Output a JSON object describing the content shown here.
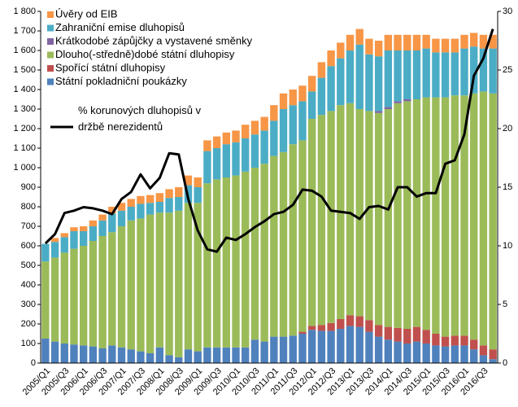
{
  "chart_data": {
    "type": "bar",
    "stacked": true,
    "categories": [
      "2005/Q1",
      null,
      "2005/Q3",
      null,
      "2006/Q1",
      null,
      "2006/Q3",
      null,
      "2007/Q1",
      null,
      "2007/Q3",
      null,
      "2008/Q1",
      null,
      "2008/Q3",
      null,
      "2009/Q1",
      null,
      "2009/Q3",
      null,
      "2010/Q1",
      null,
      "2010/Q3",
      null,
      "2011/Q1",
      null,
      "2011/Q3",
      null,
      "2012/Q1",
      null,
      "2012/Q3",
      null,
      "2013/Q1",
      null,
      "2013/Q3",
      null,
      "2014/Q1",
      null,
      "2014/Q3",
      null,
      "2015/Q1",
      null,
      "2015/Q3",
      null,
      "2016/Q1",
      null,
      "2016/Q3",
      null
    ],
    "series": [
      {
        "name": "Úvěry od EIB",
        "color": "#f79646",
        "values": [
          0,
          20,
          20,
          20,
          25,
          30,
          30,
          35,
          40,
          40,
          40,
          40,
          45,
          45,
          50,
          50,
          50,
          55,
          60,
          60,
          60,
          70,
          70,
          70,
          80,
          80,
          80,
          80,
          80,
          80,
          80,
          80,
          80,
          80,
          80,
          80,
          80,
          80,
          80,
          80,
          70,
          70,
          70,
          70,
          70,
          70,
          70,
          70
        ]
      },
      {
        "name": "Zahraniční emise dluhopisů",
        "color": "#4bacc6",
        "values": [
          90,
          80,
          80,
          90,
          75,
          75,
          80,
          95,
          80,
          70,
          75,
          60,
          55,
          75,
          70,
          90,
          80,
          165,
          160,
          170,
          170,
          170,
          170,
          170,
          180,
          220,
          200,
          200,
          140,
          190,
          230,
          240,
          270,
          330,
          290,
          280,
          290,
          260,
          250,
          250,
          250,
          230,
          230,
          220,
          240,
          240,
          220,
          230
        ]
      },
      {
        "name": "Krátkodobé zápůjčky a vystavené směnky",
        "color": "#8064a2",
        "values": [
          0,
          0,
          0,
          0,
          0,
          0,
          0,
          0,
          0,
          0,
          0,
          0,
          0,
          0,
          0,
          0,
          0,
          0,
          0,
          0,
          0,
          0,
          0,
          0,
          0,
          0,
          0,
          0,
          0,
          0,
          0,
          0,
          0,
          0,
          0,
          10,
          10,
          10,
          10,
          0,
          0,
          0,
          0,
          0,
          0,
          0,
          0,
          0
        ]
      },
      {
        "name": "Dlouho(-středně)dobé státní dluhopisy",
        "color": "#9bbb59",
        "values": [
          395,
          430,
          465,
          490,
          510,
          540,
          575,
          580,
          620,
          660,
          680,
          710,
          690,
          730,
          750,
          750,
          760,
          840,
          860,
          870,
          880,
          900,
          880,
          910,
          925,
          945,
          980,
          980,
          1060,
          1075,
          1085,
          1095,
          1085,
          1060,
          1070,
          1085,
          1115,
          1150,
          1165,
          1165,
          1190,
          1210,
          1225,
          1230,
          1230,
          1260,
          1300,
          1310
        ]
      },
      {
        "name": "Spořící státní dluhopisy",
        "color": "#c0504d",
        "values": [
          0,
          0,
          0,
          0,
          0,
          0,
          0,
          0,
          0,
          0,
          0,
          0,
          0,
          0,
          0,
          0,
          0,
          0,
          0,
          0,
          0,
          0,
          0,
          0,
          0,
          0,
          0,
          10,
          20,
          30,
          40,
          50,
          55,
          55,
          60,
          60,
          65,
          70,
          75,
          75,
          70,
          60,
          50,
          50,
          50,
          50,
          50,
          50
        ]
      },
      {
        "name": "Státní pokladniční poukázky",
        "color": "#4f81bd",
        "values": [
          125,
          110,
          100,
          95,
          90,
          85,
          75,
          90,
          80,
          70,
          60,
          50,
          80,
          40,
          30,
          70,
          60,
          80,
          80,
          80,
          80,
          80,
          120,
          110,
          135,
          135,
          140,
          150,
          170,
          165,
          165,
          175,
          190,
          185,
          160,
          135,
          120,
          110,
          100,
          110,
          100,
          90,
          85,
          90,
          90,
          70,
          40,
          20
        ]
      },
      {
        "name": "% korunových dluhopisů v držbě nerezidentů",
        "type": "line",
        "axis": "y2",
        "color": "#000000",
        "values": [
          10.2,
          11.0,
          12.8,
          13.0,
          13.3,
          13.2,
          13.0,
          12.7,
          14.0,
          14.6,
          16.1,
          14.9,
          15.8,
          17.9,
          17.8,
          14.0,
          11.3,
          9.7,
          9.5,
          10.7,
          10.5,
          11.0,
          11.6,
          12.1,
          12.7,
          12.9,
          13.5,
          14.8,
          14.7,
          14.2,
          13.0,
          12.9,
          12.8,
          12.3,
          13.3,
          13.4,
          13.1,
          15.0,
          15.0,
          14.2,
          14.5,
          14.5,
          17.0,
          17.3,
          19.5,
          24.5,
          26.0,
          28.5
        ]
      }
    ],
    "ylim": [
      0,
      1800
    ],
    "yticks": [
      0,
      100,
      200,
      300,
      400,
      500,
      600,
      700,
      800,
      900,
      {
        "value": 1000,
        "label": "1 000"
      },
      {
        "value": 1100,
        "label": "1 100"
      },
      {
        "value": 1200,
        "label": "1 200"
      },
      {
        "value": 1300,
        "label": "1 300"
      },
      {
        "value": 1400,
        "label": "1 400"
      },
      {
        "value": 1500,
        "label": "1 500"
      },
      {
        "value": 1600,
        "label": "1 600"
      },
      {
        "value": 1700,
        "label": "1 700"
      },
      {
        "value": 1800,
        "label": "1 800"
      }
    ],
    "y2lim": [
      0,
      30
    ],
    "y2ticks": [
      0,
      5,
      10,
      15,
      20,
      25,
      30
    ],
    "grid": false,
    "legend": "upper left"
  }
}
